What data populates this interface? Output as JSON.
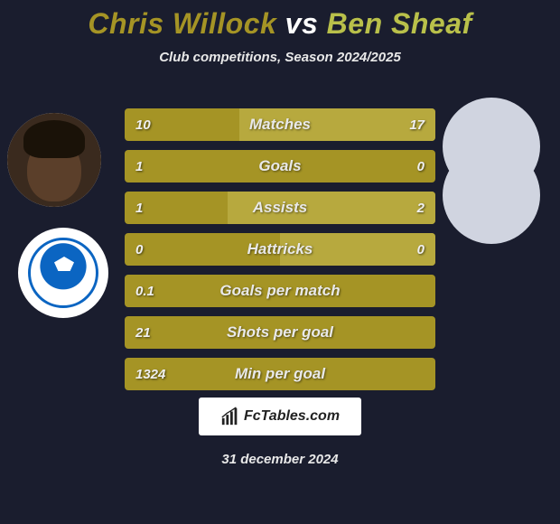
{
  "title_p1": "Chris Willock",
  "title_vs": " vs ",
  "title_p2": "Ben Sheaf",
  "title_color_p1": "#a59425",
  "title_color_vs": "#ffffff",
  "title_color_p2": "#b9c04a",
  "subtitle": "Club competitions, Season 2024/2025",
  "date": "31 december 2024",
  "watermark": "FcTables.com",
  "background_color": "#1a1d2e",
  "bar_color_left": "#a59425",
  "bar_color_right": "#b7a93e",
  "label_color": "#e9e9e9",
  "value_color": "#f0f0f0",
  "bar_fontsize": 17,
  "value_fontsize": 15,
  "rows": [
    {
      "label": "Matches",
      "left": "10",
      "right": "17",
      "split": 0.37
    },
    {
      "label": "Goals",
      "left": "1",
      "right": "0",
      "split": 1.0
    },
    {
      "label": "Assists",
      "left": "1",
      "right": "2",
      "split": 0.33
    },
    {
      "label": "Hattricks",
      "left": "0",
      "right": "0",
      "split": 0.5
    },
    {
      "label": "Goals per match",
      "left": "0.1",
      "right": "",
      "split": 1.0
    },
    {
      "label": "Shots per goal",
      "left": "21",
      "right": "",
      "split": 1.0
    },
    {
      "label": "Min per goal",
      "left": "1324",
      "right": "",
      "split": 1.0
    }
  ]
}
